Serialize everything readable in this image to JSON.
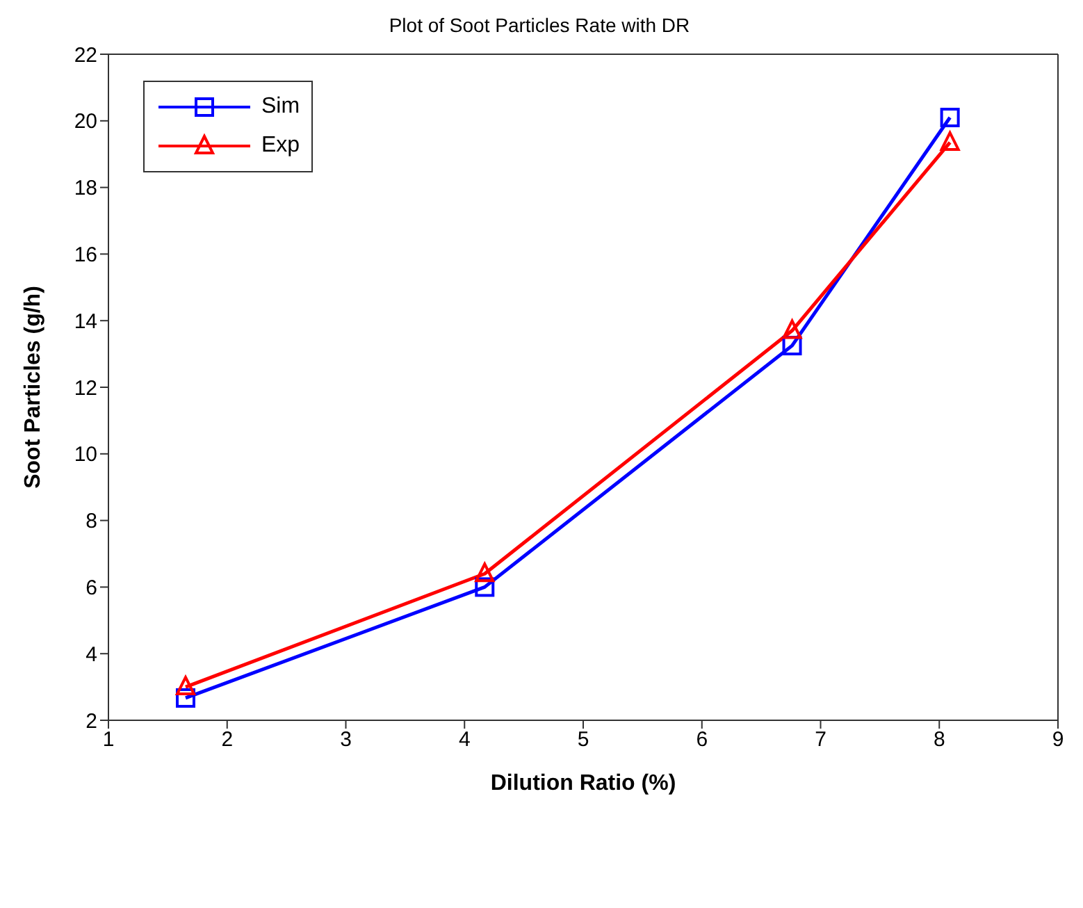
{
  "chart_data": {
    "type": "line",
    "title": "Plot of Soot Particles Rate with DR",
    "xlabel": "Dilution Ratio (%)",
    "ylabel": "Soot Particles (g/h)",
    "x": [
      1.65,
      4.17,
      6.76,
      8.09
    ],
    "series": [
      {
        "name": "Sim",
        "color": "#0000ff",
        "marker": "square",
        "values": [
          2.67,
          6.0,
          13.25,
          20.1
        ]
      },
      {
        "name": "Exp",
        "color": "#ff0000",
        "marker": "triangle",
        "values": [
          3.0,
          6.4,
          13.7,
          19.35
        ]
      }
    ],
    "xlim": [
      1,
      9
    ],
    "xticks": [
      1,
      2,
      3,
      4,
      5,
      6,
      7,
      8,
      9
    ],
    "ylim": [
      2,
      22
    ],
    "yticks": [
      2,
      4,
      6,
      8,
      10,
      12,
      14,
      16,
      18,
      20,
      22
    ],
    "grid": false,
    "legend": "top left",
    "line_style": "solid"
  }
}
